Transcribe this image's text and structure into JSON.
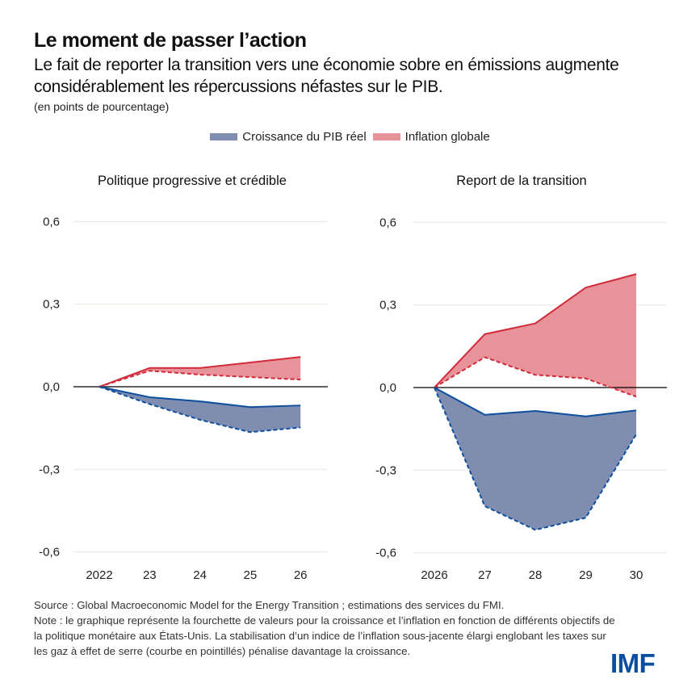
{
  "header": {
    "title": "Le moment de passer l’action",
    "subtitle": "Le fait de reporter la transition vers une économie sobre en émissions augmente considérablement les répercussions néfastes sur le PIB.",
    "units": "(en points de pourcentage)"
  },
  "legend": [
    {
      "label": "Croissance du PIB réel",
      "color": "#7e8db0"
    },
    {
      "label": "Inflation globale",
      "color": "#e8939a"
    }
  ],
  "colors": {
    "gdp_fill": "#7e8db0",
    "gdp_line": "#0d4f9e",
    "inflation_fill": "#e8939a",
    "inflation_line": "#d12a3a",
    "grid": "#e9e7dd",
    "zero_line": "#000000"
  },
  "chart_data": [
    {
      "type": "area",
      "title": "Politique progressive et crédible",
      "categories": [
        "2022",
        "23",
        "24",
        "25",
        "26"
      ],
      "ylim": [
        -0.6,
        0.6
      ],
      "yticks": [
        0.6,
        0.3,
        0.0,
        -0.3,
        -0.6
      ],
      "ytick_labels": [
        "0,6",
        "0,3",
        "0,0",
        "-0,3",
        "-0,6"
      ],
      "grid": true,
      "series": [
        {
          "name": "Inflation globale (haut)",
          "group": "inflation",
          "style": "solid",
          "values": [
            0,
            0.068,
            0.068,
            0.088,
            0.108
          ]
        },
        {
          "name": "Inflation globale (pointillés)",
          "group": "inflation",
          "style": "dashed",
          "values": [
            0,
            0.058,
            0.044,
            0.035,
            0.026
          ]
        },
        {
          "name": "Croissance du PIB réel (haut)",
          "group": "gdp",
          "style": "solid",
          "values": [
            0,
            -0.038,
            -0.053,
            -0.074,
            -0.068
          ]
        },
        {
          "name": "Croissance du PIB réel (pointillés)",
          "group": "gdp",
          "style": "dashed",
          "values": [
            0,
            -0.063,
            -0.12,
            -0.165,
            -0.148
          ]
        }
      ]
    },
    {
      "type": "area",
      "title": "Report de la transition",
      "categories": [
        "2026",
        "27",
        "28",
        "29",
        "30"
      ],
      "ylim": [
        -0.6,
        0.6
      ],
      "yticks": [
        0.6,
        0.3,
        0.0,
        -0.3,
        -0.6
      ],
      "ytick_labels": [
        "0,6",
        "0,3",
        "0,0",
        "-0,3",
        "-0,6"
      ],
      "grid": true,
      "series": [
        {
          "name": "Inflation globale (haut)",
          "group": "inflation",
          "style": "solid",
          "values": [
            0,
            0.194,
            0.233,
            0.363,
            0.412
          ]
        },
        {
          "name": "Inflation globale (pointillés)",
          "group": "inflation",
          "style": "dashed",
          "values": [
            0,
            0.11,
            0.046,
            0.033,
            -0.033
          ]
        },
        {
          "name": "Croissance du PIB réel (haut)",
          "group": "gdp",
          "style": "solid",
          "values": [
            0,
            -0.099,
            -0.085,
            -0.105,
            -0.083
          ]
        },
        {
          "name": "Croissance du PIB réel (pointillés)",
          "group": "gdp",
          "style": "dashed",
          "values": [
            0,
            -0.431,
            -0.517,
            -0.473,
            -0.17
          ]
        }
      ]
    }
  ],
  "footer": {
    "source": "Source : Global Macroeconomic Model for the Energy Transition ; estimations des services du FMI.",
    "note": "Note : le graphique représente la fourchette de valeurs pour la croissance et l’inflation en fonction de différents objectifs de la politique monétaire aux États-Unis. La stabilisation d’un indice de l’inflation sous-jacente élargi englobant les taxes sur les gaz à effet de serre (courbe en pointillés) pénalise davantage la croissance.",
    "logo": "IMF"
  }
}
